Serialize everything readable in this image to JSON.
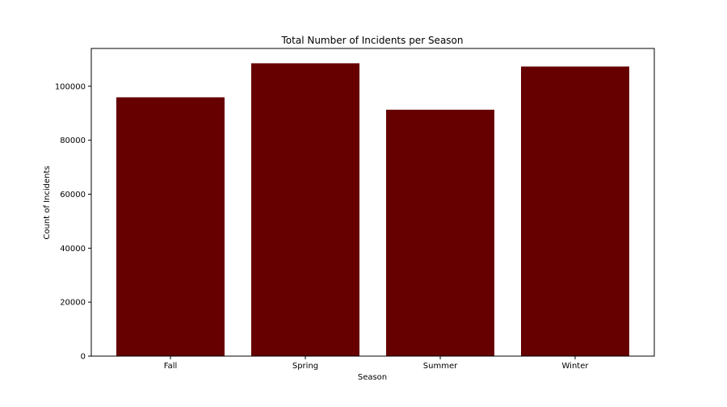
{
  "chart_data": {
    "type": "bar",
    "title": "Total Number of Incidents per Season",
    "xlabel": "Season",
    "ylabel": "Count of Incidents",
    "categories": [
      "Fall",
      "Spring",
      "Summer",
      "Winter"
    ],
    "values": [
      95900,
      108500,
      91300,
      107300
    ],
    "ylim": [
      0,
      114000
    ],
    "yticks": [
      0,
      20000,
      40000,
      60000,
      80000,
      100000
    ],
    "ytick_labels": [
      "0",
      "20000",
      "40000",
      "60000",
      "80000",
      "100000"
    ],
    "bar_color": "#660000",
    "grid": false,
    "legend": "none"
  }
}
